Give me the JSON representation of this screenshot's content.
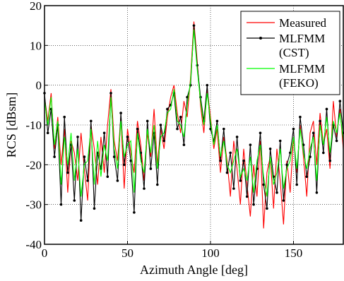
{
  "chart_data": {
    "type": "line",
    "title": "",
    "xlabel": "Azimuth Angle [deg]",
    "ylabel": "RCS [dBsm]",
    "xlim": [
      0,
      180
    ],
    "ylim": [
      -40,
      20
    ],
    "x_ticks": [
      "0",
      "50",
      "100",
      "150"
    ],
    "y_ticks": [
      "-40",
      "-30",
      "-20",
      "-10",
      "0",
      "10",
      "20"
    ],
    "grid": true,
    "legend_position": "top-right",
    "x": [
      0,
      2,
      4,
      6,
      8,
      10,
      12,
      14,
      16,
      18,
      20,
      22,
      24,
      26,
      28,
      30,
      32,
      34,
      36,
      38,
      40,
      42,
      44,
      46,
      48,
      50,
      52,
      54,
      56,
      58,
      60,
      62,
      64,
      66,
      68,
      70,
      72,
      74,
      76,
      78,
      80,
      82,
      84,
      86,
      88,
      90,
      92,
      94,
      96,
      98,
      100,
      102,
      104,
      106,
      108,
      110,
      112,
      114,
      116,
      118,
      120,
      122,
      124,
      126,
      128,
      130,
      132,
      134,
      136,
      138,
      140,
      142,
      144,
      146,
      148,
      150,
      152,
      154,
      156,
      158,
      160,
      162,
      164,
      166,
      168,
      170,
      172,
      174,
      176,
      178,
      180
    ],
    "series": [
      {
        "name": "Measured",
        "color": "#ff0000",
        "values": [
          -3,
          -9,
          -2,
          -16,
          -8,
          -20,
          -11,
          -27,
          -14,
          -17,
          -24,
          -12,
          -21,
          -29,
          -10,
          -16,
          -25,
          -13,
          -22,
          -10,
          -1,
          -14,
          -19,
          -8,
          -26,
          -11,
          -17,
          -22,
          -9,
          -15,
          -24,
          -12,
          -18,
          -6,
          -20,
          -11,
          -16,
          -8,
          -3,
          0,
          -7,
          -12,
          -4,
          -8,
          2,
          16,
          6,
          -5,
          -12,
          -1,
          -8,
          -16,
          -11,
          -22,
          -13,
          -19,
          -28,
          -14,
          -21,
          -30,
          -16,
          -25,
          -33,
          -20,
          -28,
          -14,
          -36,
          -22,
          -18,
          -31,
          -16,
          -24,
          -35,
          -19,
          -27,
          -13,
          -22,
          -10,
          -18,
          -28,
          -12,
          -9,
          -20,
          -7,
          -15,
          -11,
          -21,
          -4,
          -13,
          -6,
          -16
        ],
        "markers": false
      },
      {
        "name": "MLFMM\n(CST)",
        "color": "#000000",
        "values": [
          -2,
          -12,
          -6,
          -18,
          -10,
          -30,
          -8,
          -22,
          -15,
          -29,
          -13,
          -34,
          -18,
          -24,
          -9,
          -31,
          -17,
          -21,
          -12,
          -23,
          -2,
          -18,
          -24,
          -7,
          -20,
          -13,
          -19,
          -32,
          -11,
          -17,
          -26,
          -9,
          -21,
          -12,
          -25,
          -10,
          -14,
          -6,
          -5,
          -2,
          -11,
          -8,
          -15,
          -3,
          0,
          15,
          5,
          -3,
          -9,
          0,
          -11,
          -14,
          -9,
          -19,
          -11,
          -22,
          -17,
          -26,
          -13,
          -24,
          -19,
          -28,
          -15,
          -30,
          -21,
          -12,
          -25,
          -31,
          -16,
          -23,
          -27,
          -14,
          -29,
          -20,
          -17,
          -11,
          -25,
          -8,
          -15,
          -23,
          -18,
          -12,
          -27,
          -9,
          -17,
          -6,
          -19,
          -10,
          -14,
          -4,
          -12
        ],
        "markers": true
      },
      {
        "name": "MLFMM\n(FEKO)",
        "color": "#00ff00",
        "values": [
          -4,
          -10,
          -3,
          -15,
          -9,
          -25,
          -13,
          -20,
          -12,
          -24,
          -16,
          -28,
          -20,
          -19,
          -11,
          -25,
          -14,
          -23,
          -15,
          -19,
          -3,
          -16,
          -21,
          -9,
          -18,
          -15,
          -14,
          -27,
          -12,
          -19,
          -22,
          -11,
          -17,
          -10,
          -21,
          -13,
          -12,
          -7,
          -6,
          -1,
          -9,
          -10,
          -13,
          -5,
          1,
          14,
          4,
          -4,
          -10,
          -2,
          -9,
          -15,
          -10,
          -18,
          -14,
          -20,
          -22,
          -19,
          -16,
          -23,
          -21,
          -24,
          -18,
          -27,
          -19,
          -15,
          -23,
          -28,
          -18,
          -25,
          -22,
          -16,
          -26,
          -21,
          -19,
          -13,
          -21,
          -11,
          -17,
          -21,
          -16,
          -13,
          -24,
          -10,
          -15,
          -8,
          -17,
          -9,
          -12,
          -7,
          -14
        ],
        "markers": false
      }
    ]
  }
}
